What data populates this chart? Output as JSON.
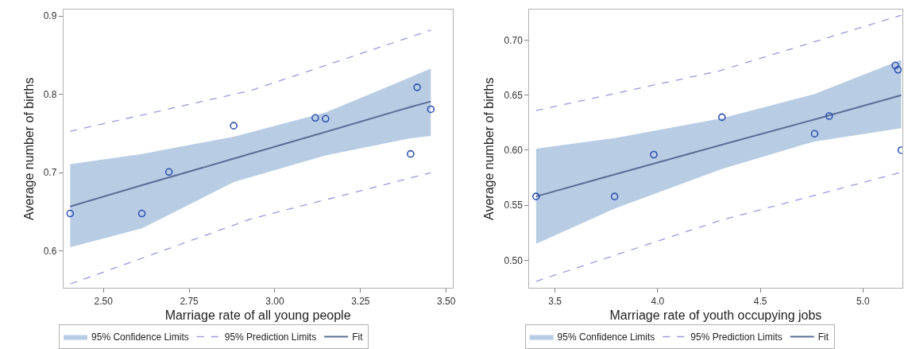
{
  "chart_data": [
    {
      "type": "scatter",
      "xlabel": "Marriage rate of all young people",
      "ylabel": "Average number of births",
      "xlim": [
        2.383,
        3.518
      ],
      "xticks": [
        {
          "value": 2.5,
          "label": "2.50"
        },
        {
          "value": 2.75,
          "label": "2.75"
        },
        {
          "value": 3.0,
          "label": "3.00"
        },
        {
          "value": 3.25,
          "label": "3.25"
        },
        {
          "value": 3.5,
          "label": "3.50"
        }
      ],
      "ylim": [
        0.553,
        0.908
      ],
      "yticks": [
        0.6,
        0.7,
        0.8,
        0.9
      ],
      "legend": "bottom",
      "series": [
        {
          "type": "area",
          "name": "95% Confidence Limits",
          "color": "#b8cce4"
        },
        {
          "type": "line",
          "name": "95% Prediction Limits",
          "color": "#9999dd",
          "line_style": "dashed",
          "x": [
            2.403,
            2.93,
            3.455
          ],
          "values": [
            0.753,
            0.805,
            0.882
          ]
        },
        {
          "type": "line",
          "color": "#9999dd",
          "line_style": "dashed",
          "x": [
            2.403,
            2.93,
            3.455
          ],
          "values": [
            0.558,
            0.641,
            0.7
          ]
        },
        {
          "type": "line",
          "name": "Fit",
          "color": "#5a6e94",
          "line_style": "solid",
          "x": [
            2.403,
            2.612,
            2.88,
            3.148,
            3.396,
            3.455
          ],
          "values": [
            0.657,
            0.684,
            0.718,
            0.752,
            0.784,
            0.791
          ],
          "lower": [
            0.605,
            0.629,
            0.688,
            0.722,
            0.744,
            0.747
          ],
          "upper": [
            0.711,
            0.724,
            0.746,
            0.777,
            0.822,
            0.833
          ]
        },
        {
          "type": "scatter",
          "marker": "circle",
          "color": "#3050b0",
          "x": [
            2.403,
            2.612,
            2.691,
            2.88,
            3.118,
            3.148,
            3.396,
            3.415,
            3.455
          ],
          "values": [
            0.648,
            0.648,
            0.701,
            0.76,
            0.77,
            0.769,
            0.724,
            0.809,
            0.781
          ]
        }
      ]
    },
    {
      "type": "scatter",
      "xlabel": "Marriage rate of youth occupying jobs",
      "ylabel": "Average number of births",
      "xlim": [
        3.375,
        5.19
      ],
      "xticks": [
        3.5,
        {
          "value": 4.0,
          "label": "4.0"
        },
        4.5,
        {
          "value": 5.0,
          "label": "5.0"
        }
      ],
      "ylim": [
        0.475,
        0.7275
      ],
      "yticks": [
        {
          "value": 0.5,
          "label": "0.50"
        },
        0.55,
        {
          "value": 0.6,
          "label": "0.60"
        },
        0.65,
        {
          "value": 0.7,
          "label": "0.70"
        }
      ],
      "legend": "bottom",
      "series": [
        {
          "type": "area",
          "name": "95% Confidence Limits",
          "color": "#b8cce4"
        },
        {
          "type": "line",
          "name": "95% Prediction Limits",
          "color": "#9999dd",
          "line_style": "dashed",
          "x": [
            3.408,
            4.3,
            5.186
          ],
          "values": [
            0.636,
            0.672,
            0.7226
          ]
        },
        {
          "type": "line",
          "color": "#9999dd",
          "line_style": "dashed",
          "x": [
            3.408,
            4.3,
            5.186
          ],
          "values": [
            0.481,
            0.536,
            0.58
          ]
        },
        {
          "type": "line",
          "name": "Fit",
          "color": "#5a6e94",
          "line_style": "solid",
          "x": [
            3.408,
            3.79,
            4.313,
            4.764,
            5.186
          ],
          "values": [
            0.558,
            0.578,
            0.605,
            0.628,
            0.65
          ],
          "lower": [
            0.515,
            0.547,
            0.583,
            0.608,
            0.62
          ],
          "upper": [
            0.6015,
            0.611,
            0.629,
            0.651,
            0.682
          ]
        },
        {
          "type": "scatter",
          "marker": "circle",
          "color": "#3050b0",
          "x": [
            3.408,
            3.79,
            3.981,
            4.313,
            4.764,
            4.835,
            5.157,
            5.17,
            5.186
          ],
          "values": [
            0.558,
            0.558,
            0.596,
            0.63,
            0.615,
            0.631,
            0.677,
            0.673,
            0.6
          ]
        }
      ]
    }
  ]
}
